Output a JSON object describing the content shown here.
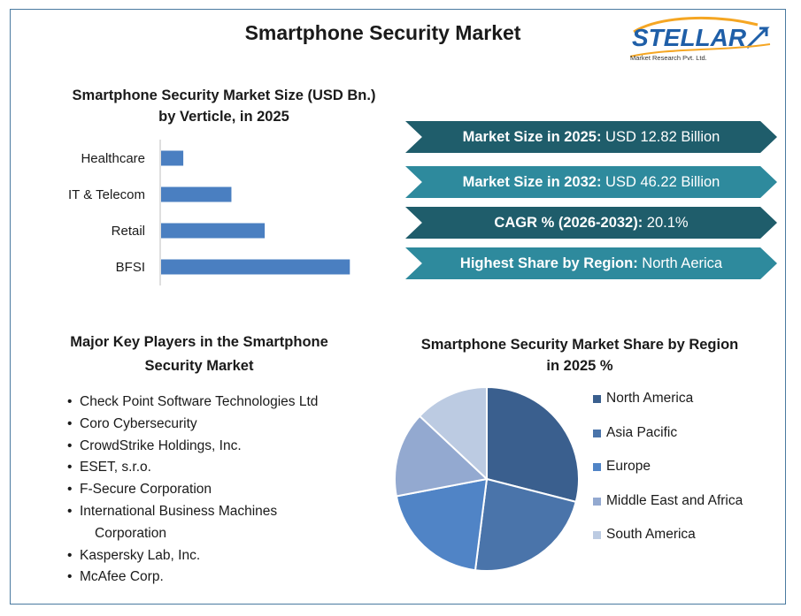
{
  "title": "Smartphone Security Market",
  "logo": {
    "name": "STELLAR",
    "tagline": "Market Research Pvt. Ltd."
  },
  "bar_chart_title": "Smartphone Security Market Size (USD Bn.) by Verticle, in 2025",
  "chart_data": [
    {
      "type": "bar",
      "orientation": "horizontal",
      "title": "Smartphone Security Market Size (USD Bn.) by Verticle, in 2025",
      "categories": [
        "Healthcare",
        "IT & Telecom",
        "Retail",
        "BFSI"
      ],
      "values": [
        0.6,
        1.9,
        2.8,
        5.1
      ],
      "xlim": [
        0,
        5.5
      ],
      "grid": false,
      "bar_color": "#4a7fc1"
    },
    {
      "type": "pie",
      "title": "Smartphone Security Market Share by Region in 2025 %",
      "categories": [
        "North America",
        "Asia Pacific",
        "Europe",
        "Middle East and Africa",
        "South America"
      ],
      "values": [
        29,
        23,
        20,
        15,
        13
      ],
      "colors": [
        "#3a5f8e",
        "#4a74aa",
        "#5084c6",
        "#93a9d0",
        "#bccbe2"
      ],
      "legend": "right"
    }
  ],
  "ribbons": [
    {
      "key": "Market Size in 2025:",
      "value": "USD 12.82 Billion",
      "style": "dark"
    },
    {
      "key": "Market Size in 2032:",
      "value": "USD 46.22 Billion",
      "style": "light"
    },
    {
      "key": "CAGR % (2026-2032):",
      "value": "20.1%",
      "style": "dark"
    },
    {
      "key": "Highest Share by Region:",
      "value": "North Aerica",
      "style": "light"
    }
  ],
  "key_players": {
    "title": "Major Key Players in the Smartphone Security Market",
    "items": [
      "Check Point Software Technologies Ltd",
      "Coro Cybersecurity",
      "CrowdStrike Holdings, Inc.",
      "ESET, s.r.o.",
      "F-Secure Corporation",
      "International Business Machines",
      "Corporation",
      "Kaspersky Lab, Inc.",
      "McAfee Corp."
    ]
  },
  "pie_chart_title": "Smartphone Security Market Share by Region in 2025 %"
}
